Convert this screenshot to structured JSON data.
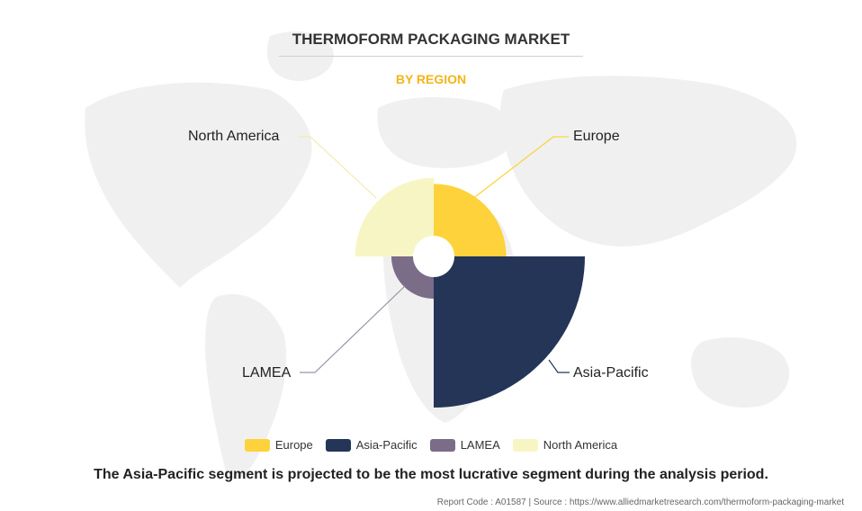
{
  "chart_data": {
    "type": "pie",
    "title": "THERMOFORM PACKAGING MARKET",
    "subtitle": "BY REGION",
    "categories": [
      "Europe",
      "Asia-Pacific",
      "LAMEA",
      "North America"
    ],
    "values": [
      0.48,
      1.0,
      0.28,
      0.52
    ],
    "colors": [
      "#fdd23b",
      "#243558",
      "#7b6c88",
      "#f7f5c4"
    ],
    "legend_position": "bottom",
    "grid": false
  },
  "caption": "The Asia-Pacific segment is projected to be the most lucrative segment during the analysis period.",
  "source": "Report Code : A01587  |  Source : https://www.alliedmarketresearch.com/thermoform-packaging-market"
}
